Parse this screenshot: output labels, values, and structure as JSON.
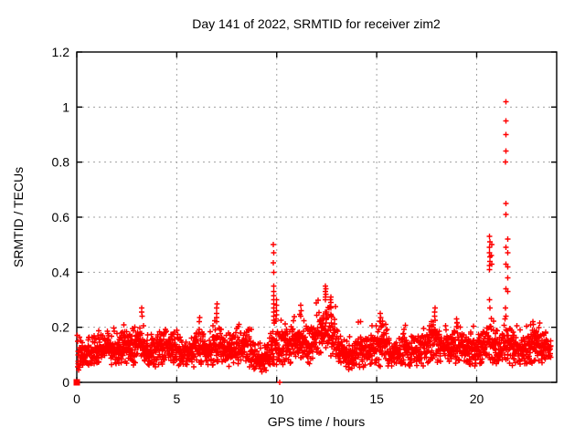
{
  "window": {
    "background": "#ffffff"
  },
  "chart_data": {
    "type": "scatter",
    "title": "Day 141 of 2022, SRMTID for receiver zim2",
    "xlabel": "GPS time / hours",
    "ylabel": "SRMTID / TECUs",
    "xlim": [
      0,
      24
    ],
    "ylim": [
      0,
      1.2
    ],
    "xticks": [
      0,
      5,
      10,
      15,
      20
    ],
    "xtick_labels": [
      "0",
      "5",
      "10",
      "15",
      "20"
    ],
    "yticks": [
      0,
      0.2,
      0.4,
      0.6,
      0.8,
      1,
      1.2
    ],
    "ytick_labels": [
      "0",
      "0.2",
      "0.4",
      "0.6",
      "0.8",
      "1",
      "1.2"
    ],
    "grid": true,
    "legend": "none",
    "marker": "plus",
    "marker_color": "#ff0000",
    "grid_color": "#a0a0a0",
    "border_color": "#000000",
    "series_name": "SRMTID",
    "description": "Dense noisy band of ~2400 red plus markers between ~0.03 and ~0.25 TECUs across 0-23.7 h, with spike clusters near 9.85 h (to 0.50), 12.4 h (to 0.35), 20.65 h (to 0.53) and 21.45 h (to 1.02); isolated square point at origin and a point at (10.15, 0).",
    "baseline_band": {
      "n_points": 2400,
      "seed": 141,
      "x_start": 0.05,
      "x_end": 23.72,
      "control_points": [
        [
          0.05,
          0.03,
          0.15
        ],
        [
          0.4,
          0.04,
          0.14
        ],
        [
          0.8,
          0.05,
          0.16
        ],
        [
          1.2,
          0.05,
          0.18
        ],
        [
          1.6,
          0.06,
          0.2
        ],
        [
          2.0,
          0.05,
          0.17
        ],
        [
          2.4,
          0.06,
          0.2
        ],
        [
          2.8,
          0.06,
          0.21
        ],
        [
          3.2,
          0.07,
          0.24
        ],
        [
          3.6,
          0.04,
          0.15
        ],
        [
          4.0,
          0.05,
          0.19
        ],
        [
          4.4,
          0.06,
          0.21
        ],
        [
          4.8,
          0.06,
          0.2
        ],
        [
          5.2,
          0.05,
          0.17
        ],
        [
          5.6,
          0.05,
          0.16
        ],
        [
          6.1,
          0.05,
          0.21
        ],
        [
          6.6,
          0.05,
          0.17
        ],
        [
          7.0,
          0.06,
          0.22
        ],
        [
          7.4,
          0.06,
          0.19
        ],
        [
          7.8,
          0.05,
          0.18
        ],
        [
          8.2,
          0.06,
          0.2
        ],
        [
          8.6,
          0.05,
          0.21
        ],
        [
          9.0,
          0.03,
          0.14
        ],
        [
          9.4,
          0.03,
          0.13
        ],
        [
          9.8,
          0.05,
          0.2
        ],
        [
          10.1,
          0.04,
          0.22
        ],
        [
          10.5,
          0.05,
          0.22
        ],
        [
          10.9,
          0.06,
          0.23
        ],
        [
          11.3,
          0.06,
          0.25
        ],
        [
          11.7,
          0.05,
          0.22
        ],
        [
          12.1,
          0.07,
          0.28
        ],
        [
          12.5,
          0.08,
          0.32
        ],
        [
          12.9,
          0.06,
          0.26
        ],
        [
          13.3,
          0.04,
          0.16
        ],
        [
          13.7,
          0.04,
          0.15
        ],
        [
          14.1,
          0.05,
          0.2
        ],
        [
          14.5,
          0.05,
          0.17
        ],
        [
          15.0,
          0.05,
          0.22
        ],
        [
          15.3,
          0.05,
          0.24
        ],
        [
          15.7,
          0.04,
          0.15
        ],
        [
          16.1,
          0.05,
          0.17
        ],
        [
          16.5,
          0.05,
          0.2
        ],
        [
          17.0,
          0.05,
          0.18
        ],
        [
          17.5,
          0.06,
          0.22
        ],
        [
          17.9,
          0.06,
          0.26
        ],
        [
          18.3,
          0.05,
          0.18
        ],
        [
          18.7,
          0.05,
          0.2
        ],
        [
          19.1,
          0.06,
          0.22
        ],
        [
          19.5,
          0.05,
          0.18
        ],
        [
          19.9,
          0.05,
          0.19
        ],
        [
          20.3,
          0.06,
          0.21
        ],
        [
          20.7,
          0.06,
          0.22
        ],
        [
          21.1,
          0.05,
          0.2
        ],
        [
          21.5,
          0.06,
          0.22
        ],
        [
          21.9,
          0.05,
          0.2
        ],
        [
          22.3,
          0.05,
          0.18
        ],
        [
          22.7,
          0.06,
          0.2
        ],
        [
          23.1,
          0.07,
          0.21
        ],
        [
          23.5,
          0.06,
          0.19
        ],
        [
          23.72,
          0.07,
          0.17
        ]
      ]
    },
    "spike_columns": [
      {
        "x": 0.02,
        "ys": [
          0.17,
          0.15
        ]
      },
      {
        "x": 3.25,
        "ys": [
          0.27,
          0.255,
          0.24
        ]
      },
      {
        "x": 6.15,
        "ys": [
          0.235,
          0.22
        ]
      },
      {
        "x": 7.0,
        "ys": [
          0.285,
          0.27,
          0.25,
          0.235,
          0.22
        ]
      },
      {
        "x": 9.85,
        "ys": [
          0.5,
          0.47,
          0.435,
          0.4,
          0.35,
          0.33,
          0.315,
          0.3,
          0.285,
          0.27,
          0.255,
          0.24,
          0.225
        ]
      },
      {
        "x": 9.97,
        "ys": [
          0.3,
          0.28,
          0.26,
          0.245,
          0.23
        ]
      },
      {
        "x": 10.15,
        "ys": [
          0.0
        ]
      },
      {
        "x": 11.2,
        "ys": [
          0.28,
          0.26,
          0.24
        ]
      },
      {
        "x": 12.45,
        "ys": [
          0.35,
          0.34,
          0.33,
          0.32,
          0.31,
          0.3
        ]
      },
      {
        "x": 12.7,
        "ys": [
          0.31,
          0.29,
          0.27
        ]
      },
      {
        "x": 14.2,
        "ys": [
          0.22
        ]
      },
      {
        "x": 15.2,
        "ys": [
          0.25,
          0.235,
          0.22
        ]
      },
      {
        "x": 17.9,
        "ys": [
          0.27,
          0.255,
          0.24,
          0.225
        ]
      },
      {
        "x": 19.0,
        "ys": [
          0.23,
          0.215
        ]
      },
      {
        "x": 20.65,
        "ys": [
          0.53,
          0.51,
          0.49,
          0.47,
          0.455,
          0.44,
          0.425,
          0.41,
          0.3,
          0.27
        ]
      },
      {
        "x": 20.75,
        "ys": [
          0.5,
          0.46,
          0.43
        ]
      },
      {
        "x": 21.45,
        "ys": [
          1.02,
          0.95,
          0.9,
          0.84,
          0.8,
          0.65,
          0.61,
          0.49,
          0.43,
          0.34,
          0.27,
          0.24
        ]
      },
      {
        "x": 21.55,
        "ys": [
          0.52,
          0.47,
          0.42,
          0.38,
          0.33
        ]
      }
    ],
    "special_points": [
      {
        "x": 0,
        "y": 0,
        "marker": "square"
      }
    ]
  }
}
